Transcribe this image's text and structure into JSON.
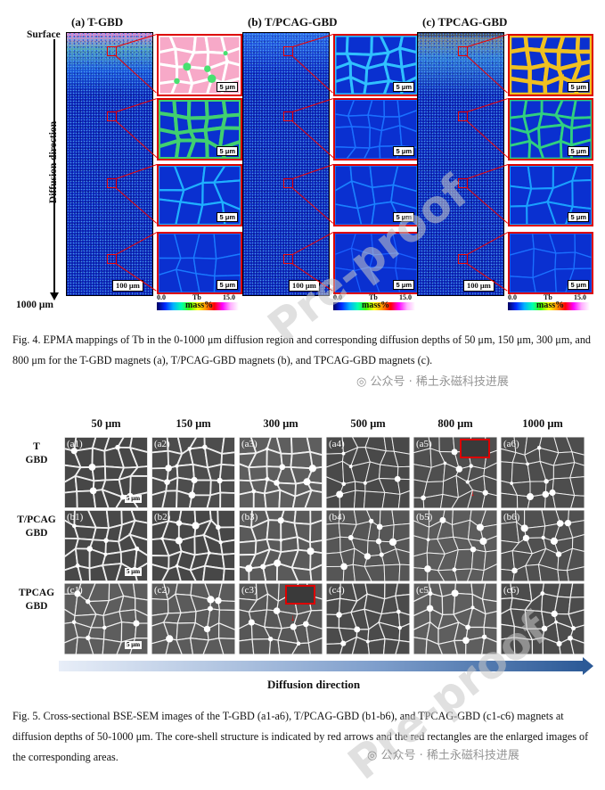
{
  "fig4": {
    "panels": [
      {
        "label": "(a) T-GBD"
      },
      {
        "label": "(b) T/PCAG-GBD"
      },
      {
        "label": "(c) TPCAG-GBD"
      }
    ],
    "surface_label": "Surface",
    "depth_label": "1000 μm",
    "axis_label": "Diffusion direction",
    "scale_100": "100 μm",
    "scale_5": "5 μm",
    "colorbar": {
      "min": "0.0",
      "element": "Tb",
      "max": "15.0",
      "unit": "mass%"
    },
    "caption": "Fig. 4. EPMA mappings of Tb in the 0-1000 μm diffusion region and corresponding diffusion depths of 50 μm, 150 μm, 300 μm, and 800 μm for the T-GBD magnets (a), T/PCAG-GBD magnets (b), and TPCAG-GBD magnets (c)."
  },
  "fig5": {
    "columns": [
      "50 μm",
      "150 μm",
      "300 μm",
      "500 μm",
      "800 μm",
      "1000 μm"
    ],
    "rows": [
      {
        "name": "T\nGBD",
        "ids": [
          "(a1)",
          "(a2)",
          "(a3)",
          "(a4)",
          "(a5)",
          "(a6)"
        ]
      },
      {
        "name": "T/PCAG\nGBD",
        "ids": [
          "(b1)",
          "(b2)",
          "(b3)",
          "(b4)",
          "(b5)",
          "(b6)"
        ]
      },
      {
        "name": "TPCAG\nGBD",
        "ids": [
          "(c1)",
          "(c2)",
          "(c3)",
          "(c4)",
          "(c5)",
          "(c6)"
        ]
      }
    ],
    "scale_5": "5 μm",
    "direction_label": "Diffusion direction",
    "caption": "Fig. 5. Cross-sectional BSE-SEM images of the T-GBD (a1-a6), T/PCAG-GBD (b1-b6), and TPCAG-GBD (c1-c6) magnets at diffusion depths of 50-1000 μm. The core-shell structure is indicated by red arrows and the red rectangles are the enlarged images of the corresponding areas."
  },
  "watermark": {
    "text": "Pre-proof",
    "wechat": "公众号 · 稀土永磁科技进展"
  },
  "colors": {
    "accent_red": "#dd0000",
    "map_blue": "#0a1fb0",
    "arrow_blue": "#2c5a97"
  }
}
